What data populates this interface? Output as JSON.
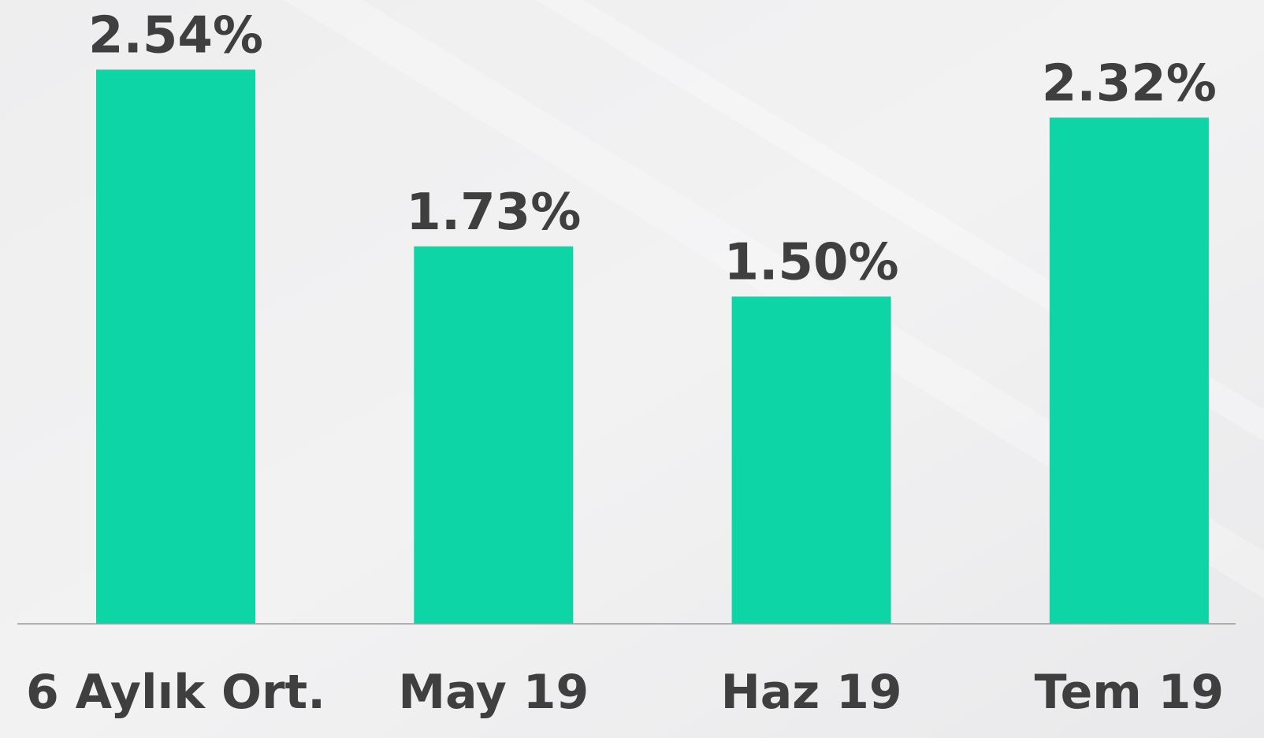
{
  "chart_data": {
    "type": "bar",
    "categories": [
      "6 Aylık Ort.",
      "May 19",
      "Haz 19",
      "Tem 19"
    ],
    "values": [
      2.54,
      1.73,
      1.5,
      2.32
    ],
    "value_labels": [
      "2.54%",
      "1.73%",
      "1.50%",
      "2.32%"
    ],
    "color": "#0ed5a6"
  }
}
